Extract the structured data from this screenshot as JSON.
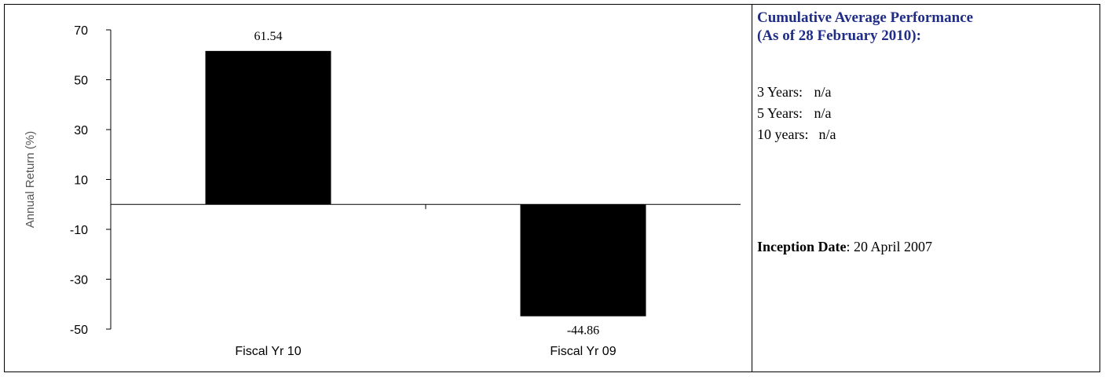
{
  "chart_data": {
    "type": "bar",
    "categories": [
      "Fiscal Yr 10",
      "Fiscal Yr 09"
    ],
    "values": [
      61.54,
      -44.86
    ],
    "data_labels": [
      "61.54",
      "-44.86"
    ],
    "ylabel": "Annual Return (%)",
    "xlabel": "",
    "title": "",
    "ylim": [
      -50,
      70
    ],
    "yticks": [
      70,
      50,
      30,
      10,
      -10,
      -30,
      -50
    ],
    "bar_color": "#000000",
    "grid": false,
    "legend": "none"
  },
  "side_panel": {
    "title_line1": "Cumulative Average Performance",
    "title_line2": "(As of 28 February 2010):",
    "title_color": "#1f2d87",
    "rows": [
      {
        "label": "3 Years:",
        "value": "n/a"
      },
      {
        "label": "5 Years:",
        "value": "n/a"
      },
      {
        "label": "10 years:",
        "value": "n/a"
      }
    ],
    "inception_label": "Inception Date",
    "inception_value": ": 20 April 2007"
  }
}
